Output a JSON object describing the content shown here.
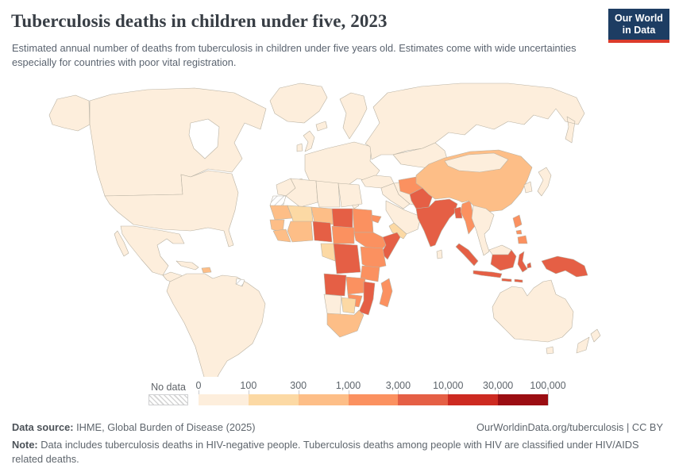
{
  "header": {
    "title": "Tuberculosis deaths in children under five, 2023",
    "subtitle": "Estimated annual number of deaths from tuberculosis in children under five years old. Estimates come with wide uncertainties especially for countries with poor vital registration.",
    "logo": {
      "line1": "Our World",
      "line2": "in Data",
      "bg_color": "#1d3d63",
      "accent_color": "#dc3b2b"
    }
  },
  "legend": {
    "no_data_label": "No data",
    "tick_labels": [
      "0",
      "100",
      "300",
      "1,000",
      "3,000",
      "10,000",
      "30,000",
      "100,000"
    ],
    "bin_colors": [
      "#fdeedc",
      "#fcd9a4",
      "#fdbe87",
      "#fb9160",
      "#e55f45",
      "#cd2a21",
      "#9b0d12"
    ]
  },
  "map": {
    "ocean_color": "#ffffff",
    "border_color": "#b9b2a3",
    "countries": {
      "greenland": 0,
      "iceland": 0,
      "alaska": 0,
      "canada": 0,
      "usa": 0,
      "mexico": 0,
      "central-america": 0,
      "cuba": 0,
      "hispaniola": 2,
      "south-america": 0,
      "french-guiana": "nd",
      "uk": 0,
      "ireland": 0,
      "scandinavia": 0,
      "europe": 0,
      "iberia": 0,
      "italy": 0,
      "russia": 0,
      "kazakhstan": 0,
      "tajikistan": 2,
      "turkey": 0,
      "middle-east": 0,
      "iran": 0,
      "saudi-arabia": 0,
      "yemen": 1,
      "morocco": 0,
      "western-sahara": "nd",
      "algeria": 0,
      "libya": 0,
      "egypt": 0,
      "mauritania": 2,
      "mali": 1,
      "niger": 2,
      "chad": 4,
      "sudan": 3,
      "eritrea": 3,
      "senegal": 2,
      "guinea": 2,
      "ivory-ghana": 2,
      "nigeria": 4,
      "cameroon-car": 3,
      "gabon-congo": 1,
      "drc": 4,
      "ethiopia": 3,
      "somalia": 4,
      "uganda-kenya": 3,
      "tanzania": 3,
      "angola": 4,
      "zambia": 3,
      "mozambique": 4,
      "zimbabwe": 3,
      "namibia": 0,
      "botswana": 1,
      "south-africa": 2,
      "madagascar": 3,
      "afghanistan": 3,
      "pakistan": 4,
      "india": 4,
      "sri-lanka": 0,
      "bangladesh": 4,
      "myanmar": 3,
      "china": 2,
      "mongolia": 0,
      "korea": 0,
      "japan": 0,
      "indochina": 0,
      "sumatra": 4,
      "java": 4,
      "borneo-malaysia": 0,
      "borneo-indonesia": 4,
      "sulawesi": 4,
      "lesser-sunda": 4,
      "maluku": 4,
      "papua": 4,
      "philippines": 3,
      "australia": 0,
      "tasmania": 0,
      "new-zealand": 0
    }
  },
  "footer": {
    "source_prefix": "Data source:",
    "source_text": " IHME, Global Burden of Disease (2025)",
    "rights": "OurWorldinData.org/tuberculosis | CC BY",
    "note_prefix": "Note:",
    "note_text": " Data includes tuberculosis deaths in HIV-negative people. Tuberculosis deaths among people with HIV are classified under HIV/AIDS related deaths."
  }
}
